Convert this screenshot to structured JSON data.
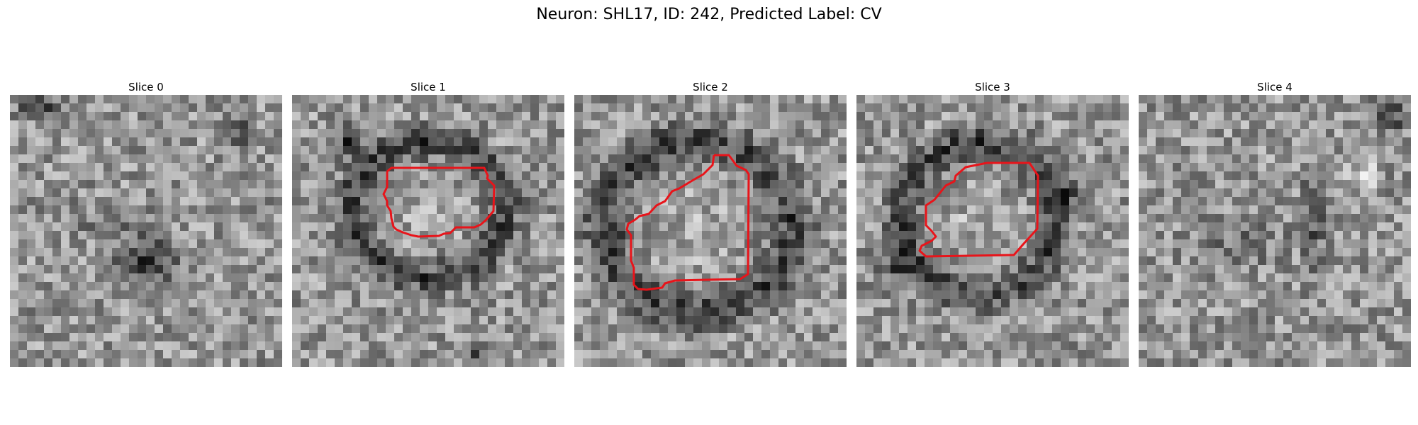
{
  "figure": {
    "title": "Neuron: SHL17, ID: 242, Predicted Label: CV"
  },
  "panels": [
    {
      "title": "Slice 0",
      "has_contour": false,
      "contour_color": "#e8141a"
    },
    {
      "title": "Slice 1",
      "has_contour": true,
      "contour_color": "#e8141a"
    },
    {
      "title": "Slice 2",
      "has_contour": true,
      "contour_color": "#e8141a"
    },
    {
      "title": "Slice 3",
      "has_contour": true,
      "contour_color": "#e8141a"
    },
    {
      "title": "Slice 4",
      "has_contour": false,
      "contour_color": "#e8141a"
    }
  ]
}
